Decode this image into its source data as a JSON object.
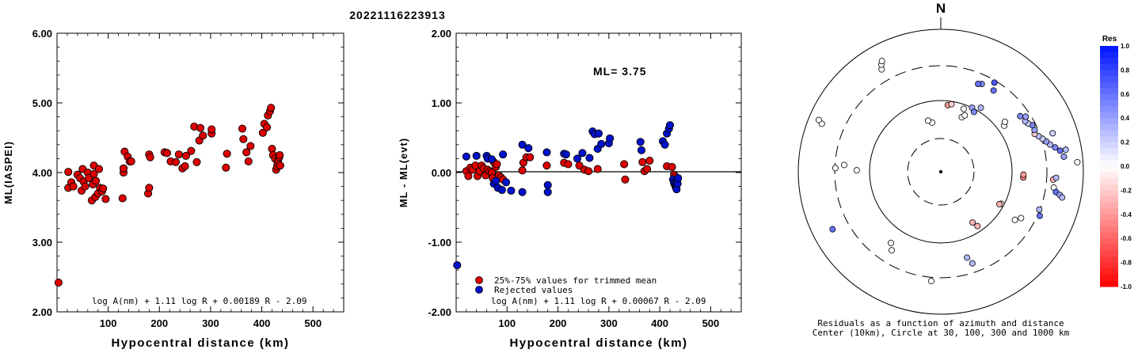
{
  "title": "20221116223913",
  "chart_data": [
    {
      "type": "scatter",
      "title": "",
      "xlabel": "Hypocentral distance (km)",
      "ylabel": "ML(IASPEI)",
      "xlim": [
        0,
        560
      ],
      "ylim": [
        2.0,
        6.0
      ],
      "x_ticks": [
        "100",
        "200",
        "300",
        "400",
        "500"
      ],
      "x_tick_values": [
        100,
        200,
        300,
        400,
        500
      ],
      "y_ticks": [
        "2.00",
        "3.00",
        "4.00",
        "5.00",
        "6.00"
      ],
      "y_tick_values": [
        2,
        3,
        4,
        5,
        6
      ],
      "formula": "log A(nm) + 1.11 log R + 0.00189 R - 2.09",
      "series": [
        {
          "color": "#dd0000",
          "points": [
            [
              3,
              2.42
            ],
            [
              22,
              3.78
            ],
            [
              22,
              4.01
            ],
            [
              28,
              3.86
            ],
            [
              32,
              3.8
            ],
            [
              40,
              3.97
            ],
            [
              45,
              3.92
            ],
            [
              48,
              3.74
            ],
            [
              50,
              4.05
            ],
            [
              52,
              3.87
            ],
            [
              55,
              3.8
            ],
            [
              60,
              4.0
            ],
            [
              62,
              3.92
            ],
            [
              68,
              3.6
            ],
            [
              70,
              3.83
            ],
            [
              72,
              3.98
            ],
            [
              72,
              4.1
            ],
            [
              75,
              3.65
            ],
            [
              76,
              3.88
            ],
            [
              80,
              3.7
            ],
            [
              82,
              4.05
            ],
            [
              84,
              3.78
            ],
            [
              88,
              3.73
            ],
            [
              90,
              3.77
            ],
            [
              95,
              3.62
            ],
            [
              128,
              3.63
            ],
            [
              130,
              4.0
            ],
            [
              130,
              4.06
            ],
            [
              132,
              4.3
            ],
            [
              138,
              4.23
            ],
            [
              142,
              4.16
            ],
            [
              145,
              4.16
            ],
            [
              178,
              3.7
            ],
            [
              180,
              3.78
            ],
            [
              180,
              4.26
            ],
            [
              182,
              4.22
            ],
            [
              210,
              4.29
            ],
            [
              215,
              4.28
            ],
            [
              222,
              4.16
            ],
            [
              232,
              4.15
            ],
            [
              238,
              4.26
            ],
            [
              245,
              4.06
            ],
            [
              250,
              4.09
            ],
            [
              252,
              4.24
            ],
            [
              262,
              4.31
            ],
            [
              268,
              4.66
            ],
            [
              273,
              4.15
            ],
            [
              278,
              4.46
            ],
            [
              280,
              4.64
            ],
            [
              285,
              4.53
            ],
            [
              302,
              4.56
            ],
            [
              302,
              4.62
            ],
            [
              330,
              4.07
            ],
            [
              332,
              4.27
            ],
            [
              362,
              4.63
            ],
            [
              364,
              4.48
            ],
            [
              370,
              4.29
            ],
            [
              374,
              4.16
            ],
            [
              378,
              4.38
            ],
            [
              402,
              4.57
            ],
            [
              405,
              4.7
            ],
            [
              410,
              4.65
            ],
            [
              412,
              4.82
            ],
            [
              416,
              4.88
            ],
            [
              418,
              4.93
            ],
            [
              420,
              4.34
            ],
            [
              422,
              4.25
            ],
            [
              426,
              4.2
            ],
            [
              428,
              4.04
            ],
            [
              430,
              4.09
            ],
            [
              431,
              4.14
            ],
            [
              432,
              4.18
            ],
            [
              434,
              4.22
            ],
            [
              435,
              4.25
            ],
            [
              436,
              4.1
            ]
          ]
        }
      ]
    },
    {
      "type": "scatter",
      "title": "",
      "xlabel": "Hypocentral distance (km)",
      "ylabel": "ML - ML(evt)",
      "xlim": [
        0,
        560
      ],
      "ylim": [
        -2.0,
        2.0
      ],
      "x_ticks": [
        "100",
        "200",
        "300",
        "400",
        "500"
      ],
      "x_tick_values": [
        100,
        200,
        300,
        400,
        500
      ],
      "y_ticks": [
        "-2.00",
        "-1.00",
        "0.00",
        "1.00",
        "2.00"
      ],
      "y_tick_values": [
        -2,
        -1,
        0,
        1,
        2
      ],
      "zero_line": true,
      "annotation": "ML= 3.75",
      "formula": "log A(nm) + 1.11 log R + 0.00067 R - 2.09",
      "legend": [
        {
          "label": "25%-75% values for trimmed mean",
          "color": "#dd0000"
        },
        {
          "label": "Rejected values",
          "color": "#0011cc"
        }
      ],
      "series": [
        {
          "name": "25%-75% values for trimmed mean",
          "color": "#dd0000",
          "points": [
            [
              20,
              0.02
            ],
            [
              24,
              -0.05
            ],
            [
              28,
              0.07
            ],
            [
              32,
              0.04
            ],
            [
              38,
              0.1
            ],
            [
              42,
              -0.05
            ],
            [
              46,
              0.02
            ],
            [
              50,
              0.1
            ],
            [
              54,
              0.06
            ],
            [
              58,
              -0.04
            ],
            [
              62,
              0.04
            ],
            [
              66,
              0.02
            ],
            [
              70,
              0.0
            ],
            [
              72,
              -0.08
            ],
            [
              74,
              0.15
            ],
            [
              78,
              0.08
            ],
            [
              80,
              0.12
            ],
            [
              84,
              -0.04
            ],
            [
              88,
              -0.07
            ],
            [
              92,
              -0.1
            ],
            [
              130,
              0.03
            ],
            [
              132,
              0.14
            ],
            [
              138,
              0.22
            ],
            [
              145,
              0.22
            ],
            [
              178,
              0.1
            ],
            [
              212,
              0.14
            ],
            [
              220,
              0.12
            ],
            [
              242,
              0.1
            ],
            [
              252,
              0.04
            ],
            [
              260,
              0.02
            ],
            [
              278,
              0.05
            ],
            [
              330,
              0.12
            ],
            [
              332,
              -0.1
            ],
            [
              366,
              0.15
            ],
            [
              370,
              0.02
            ],
            [
              375,
              0.05
            ],
            [
              380,
              0.17
            ],
            [
              414,
              0.09
            ],
            [
              424,
              0.08
            ],
            [
              428,
              -0.03
            ],
            [
              430,
              -0.06
            ]
          ]
        },
        {
          "name": "Rejected values",
          "color": "#0011cc",
          "points": [
            [
              2,
              -1.33
            ],
            [
              20,
              0.23
            ],
            [
              40,
              0.24
            ],
            [
              60,
              0.24
            ],
            [
              62,
              0.2
            ],
            [
              70,
              0.19
            ],
            [
              74,
              -0.16
            ],
            [
              78,
              -0.12
            ],
            [
              82,
              -0.22
            ],
            [
              90,
              -0.25
            ],
            [
              92,
              0.26
            ],
            [
              98,
              -0.14
            ],
            [
              108,
              -0.26
            ],
            [
              130,
              0.4
            ],
            [
              130,
              -0.28
            ],
            [
              142,
              0.35
            ],
            [
              178,
              0.29
            ],
            [
              180,
              -0.18
            ],
            [
              180,
              -0.28
            ],
            [
              212,
              0.27
            ],
            [
              216,
              0.26
            ],
            [
              238,
              0.2
            ],
            [
              248,
              0.28
            ],
            [
              262,
              0.21
            ],
            [
              268,
              0.59
            ],
            [
              272,
              0.55
            ],
            [
              278,
              0.34
            ],
            [
              280,
              0.56
            ],
            [
              285,
              0.41
            ],
            [
              300,
              0.42
            ],
            [
              302,
              0.49
            ],
            [
              362,
              0.44
            ],
            [
              364,
              0.32
            ],
            [
              406,
              0.45
            ],
            [
              410,
              0.4
            ],
            [
              414,
              0.56
            ],
            [
              418,
              0.63
            ],
            [
              420,
              0.68
            ],
            [
              426,
              -0.1
            ],
            [
              428,
              -0.15
            ],
            [
              430,
              -0.18
            ],
            [
              431,
              -0.2
            ],
            [
              432,
              -0.22
            ],
            [
              433,
              -0.24
            ],
            [
              434,
              -0.12
            ],
            [
              435,
              -0.16
            ],
            [
              436,
              -0.08
            ]
          ]
        }
      ]
    },
    {
      "type": "polar-scatter",
      "north_label": "N",
      "caption_line1": "Residuals as a function of azimuth and distance",
      "caption_line2": "Center (10km), Circle at 30, 100, 300 and 1000 km",
      "ring_distances_km": [
        30,
        100,
        300,
        1000
      ],
      "colorbar": {
        "label": "Res",
        "ticks": [
          "1.0",
          "0.8",
          "0.6",
          "0.4",
          "0.2",
          "0.0",
          "-0.2",
          "-0.4",
          "-0.6",
          "-0.8",
          "-1.0"
        ],
        "tick_values": [
          1.0,
          0.8,
          0.6,
          0.4,
          0.2,
          0.0,
          -0.2,
          -0.4,
          -0.6,
          -0.8,
          -1.0
        ]
      },
      "points": [
        {
          "az": -30,
          "r": 0.83,
          "res": 0.0
        },
        {
          "az": -29,
          "r": 0.86,
          "res": 0.0
        },
        {
          "az": -28,
          "r": 0.88,
          "res": 0.0
        },
        {
          "az": -68,
          "r": 0.9,
          "res": 0.0
        },
        {
          "az": -67,
          "r": 0.93,
          "res": 0.0
        },
        {
          "az": -86,
          "r": 0.68,
          "res": 0.0
        },
        {
          "az": -88,
          "r": 0.74,
          "res": 0.0
        },
        {
          "az": -89,
          "r": 0.59,
          "res": 0.0
        },
        {
          "az": -118,
          "r": 0.86,
          "res": 0.6
        },
        {
          "az": -145,
          "r": 0.61,
          "res": 0.0
        },
        {
          "az": -148,
          "r": 0.65,
          "res": 0.0
        },
        {
          "az": -175,
          "r": 0.77,
          "res": 0.0
        },
        {
          "az": 163,
          "r": 0.63,
          "res": 0.3
        },
        {
          "az": 161,
          "r": 0.68,
          "res": 0.3
        },
        {
          "az": 148,
          "r": 0.42,
          "res": -0.3
        },
        {
          "az": 146,
          "r": 0.46,
          "res": -0.3
        },
        {
          "az": 123,
          "r": 0.62,
          "res": 0.0
        },
        {
          "az": 120,
          "r": 0.65,
          "res": 0.0
        },
        {
          "az": 114,
          "r": 0.76,
          "res": 0.6
        },
        {
          "az": 111,
          "r": 0.74,
          "res": 0.3
        },
        {
          "az": 118,
          "r": 0.48,
          "res": 0.0
        },
        {
          "az": 119,
          "r": 0.47,
          "res": -0.3
        },
        {
          "az": 94,
          "r": 0.58,
          "res": -0.5
        },
        {
          "az": 92,
          "r": 0.58,
          "res": -0.4
        },
        {
          "az": 98,
          "r": 0.8,
          "res": 0.0
        },
        {
          "az": 100,
          "r": 0.82,
          "res": 0.6
        },
        {
          "az": 101,
          "r": 0.85,
          "res": 0.4
        },
        {
          "az": 102,
          "r": 0.87,
          "res": 0.3
        },
        {
          "az": 94,
          "r": 0.79,
          "res": -0.3
        },
        {
          "az": 93,
          "r": 0.81,
          "res": 0.3
        },
        {
          "az": 83,
          "r": 0.87,
          "res": 0.4
        },
        {
          "az": 80,
          "r": 0.85,
          "res": 0.6
        },
        {
          "az": 78,
          "r": 0.82,
          "res": 0.5
        },
        {
          "az": 76,
          "r": 0.79,
          "res": 0.3
        },
        {
          "az": 74,
          "r": 0.77,
          "res": 0.4
        },
        {
          "az": 72,
          "r": 0.75,
          "res": 0.2
        },
        {
          "az": 70,
          "r": 0.73,
          "res": 0.3
        },
        {
          "az": 68,
          "r": 0.71,
          "res": -0.2
        },
        {
          "az": 66,
          "r": 0.72,
          "res": 0.4
        },
        {
          "az": 63,
          "r": 0.72,
          "res": 0.5
        },
        {
          "az": 61,
          "r": 0.7,
          "res": 0.2
        },
        {
          "az": 59,
          "r": 0.69,
          "res": 0.3
        },
        {
          "az": 55,
          "r": 0.68,
          "res": 0.5
        },
        {
          "az": 57,
          "r": 0.71,
          "res": 0.4
        },
        {
          "az": 86,
          "r": 0.96,
          "res": 0.0
        },
        {
          "az": 80,
          "r": 0.89,
          "res": 0.3
        },
        {
          "az": 71,
          "r": 0.83,
          "res": 0.2
        },
        {
          "az": 33,
          "r": 0.68,
          "res": 0.6
        },
        {
          "az": 31,
          "r": 0.73,
          "res": 0.7
        },
        {
          "az": 25,
          "r": 0.68,
          "res": 0.5
        },
        {
          "az": 23,
          "r": 0.67,
          "res": 0.6
        },
        {
          "az": 21,
          "r": 0.41,
          "res": 0.0
        },
        {
          "az": 23,
          "r": 0.43,
          "res": 0.0
        },
        {
          "az": 20,
          "r": 0.47,
          "res": 0.0
        },
        {
          "az": 26,
          "r": 0.5,
          "res": 0.4
        },
        {
          "az": 29,
          "r": 0.48,
          "res": 0.5
        },
        {
          "az": 32,
          "r": 0.53,
          "res": 0.3
        },
        {
          "az": 6,
          "r": 0.47,
          "res": -0.4
        },
        {
          "az": 9,
          "r": 0.48,
          "res": -0.2
        },
        {
          "az": -10,
          "r": 0.35,
          "res": 0.0
        },
        {
          "az": -14,
          "r": 0.37,
          "res": 0.0
        },
        {
          "az": 54,
          "r": 0.55,
          "res": 0.0
        },
        {
          "az": 52,
          "r": 0.57,
          "res": 0.0
        }
      ]
    }
  ]
}
